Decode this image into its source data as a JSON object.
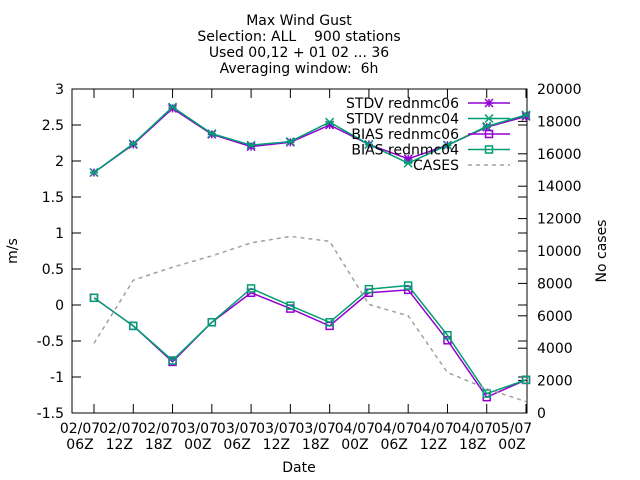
{
  "chart_data": {
    "type": "line",
    "title_lines": [
      "Max Wind Gust",
      "Selection: ALL    900 stations",
      "Used 00,12 + 01 02 ... 36",
      "Averaging window:  6h"
    ],
    "xlabel": "Date",
    "ylabel": "m/s",
    "y2label": "No cases",
    "ylim": [
      -1.5,
      3
    ],
    "y2lim": [
      0,
      20000
    ],
    "yticks": [
      "3",
      "2.5",
      "2",
      "1.5",
      "1",
      "0.5",
      "0",
      "-0.5",
      "-1",
      "-1.5"
    ],
    "y2ticks": [
      "20000",
      "18000",
      "16000",
      "14000",
      "12000",
      "10000",
      "8000",
      "6000",
      "4000",
      "2000",
      "0"
    ],
    "x_tick_labels": [
      [
        "02/07",
        "06Z"
      ],
      [
        "02/07",
        "12Z"
      ],
      [
        "02/07",
        "18Z"
      ],
      [
        "03/07",
        "00Z"
      ],
      [
        "03/07",
        "06Z"
      ],
      [
        "03/07",
        "12Z"
      ],
      [
        "03/07",
        "18Z"
      ],
      [
        "04/07",
        "00Z"
      ],
      [
        "04/07",
        "06Z"
      ],
      [
        "04/07",
        "12Z"
      ],
      [
        "04/07",
        "18Z"
      ],
      [
        "05/07",
        "00Z"
      ]
    ],
    "x": [
      "02/07 06Z",
      "02/07 12Z",
      "02/07 18Z",
      "03/07 00Z",
      "03/07 06Z",
      "03/07 12Z",
      "03/07 18Z",
      "04/07 00Z",
      "04/07 06Z",
      "04/07 12Z",
      "04/07 18Z",
      "05/07 00Z"
    ],
    "legend_position": "top-right",
    "grid": false,
    "series": [
      {
        "name": "STDV rednmc06",
        "axis": "y",
        "color": "#9400d3",
        "marker": "star",
        "values": [
          1.84,
          2.23,
          2.73,
          2.37,
          2.2,
          2.26,
          2.5,
          2.23,
          2.03,
          2.22,
          2.47,
          2.62
        ]
      },
      {
        "name": "STDV rednmc04",
        "axis": "y",
        "color": "#009e73",
        "marker": "x-star",
        "values": [
          1.84,
          2.24,
          2.75,
          2.38,
          2.22,
          2.27,
          2.54,
          2.23,
          1.97,
          2.22,
          2.48,
          2.64
        ]
      },
      {
        "name": "BIAS rednmc06",
        "axis": "y",
        "color": "#9400d3",
        "marker": "square",
        "values": [
          0.1,
          -0.29,
          -0.79,
          -0.24,
          0.17,
          -0.05,
          -0.29,
          0.17,
          0.21,
          -0.49,
          -1.28,
          -1.04
        ]
      },
      {
        "name": "BIAS rednmc04",
        "axis": "y",
        "color": "#009e73",
        "marker": "square",
        "values": [
          0.1,
          -0.29,
          -0.77,
          -0.24,
          0.23,
          -0.01,
          -0.24,
          0.22,
          0.27,
          -0.42,
          -1.23,
          -1.04
        ]
      },
      {
        "name": "CASES",
        "axis": "y2",
        "color": "#a0a0a0",
        "marker": "none",
        "dash": true,
        "values": [
          4300,
          8200,
          9000,
          9700,
          10500,
          10900,
          10600,
          6700,
          6000,
          2500,
          1500,
          700
        ]
      }
    ]
  }
}
